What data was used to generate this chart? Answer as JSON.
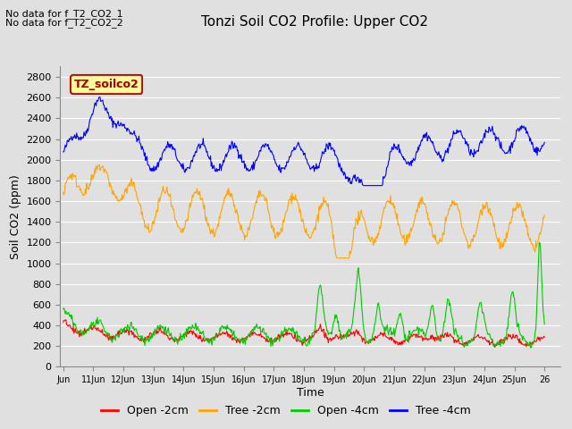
{
  "title": "Tonzi Soil CO2 Profile: Upper CO2",
  "xlabel": "Time",
  "ylabel": "Soil CO2 (ppm)",
  "no_data_text": [
    "No data for f_T2_CO2_1",
    "No data for f_T2_CO2_2"
  ],
  "legend_label": "TZ_soilco2",
  "legend_entries": [
    "Open -2cm",
    "Tree -2cm",
    "Open -4cm",
    "Tree -4cm"
  ],
  "legend_colors": [
    "#ff0000",
    "#ffa500",
    "#00cc00",
    "#0000ff"
  ],
  "ylim": [
    0,
    2900
  ],
  "yticks": [
    0,
    200,
    400,
    600,
    800,
    1000,
    1200,
    1400,
    1600,
    1800,
    2000,
    2200,
    2400,
    2600,
    2800
  ],
  "xtick_labels": [
    "Jun",
    "11Jun",
    "12Jun",
    "13Jun",
    "14Jun",
    "15Jun",
    "16Jun",
    "17Jun",
    "18Jun",
    "19Jun",
    "20Jun",
    "21Jun",
    "22Jun",
    "23Jun",
    "24Jun",
    "25Jun",
    "26"
  ],
  "background_color": "#e0e0e0",
  "grid_color": "#ffffff",
  "title_fontsize": 11,
  "axis_label_fontsize": 9,
  "tick_fontsize": 8,
  "no_data_fontsize": 8,
  "legend_fontsize": 8
}
